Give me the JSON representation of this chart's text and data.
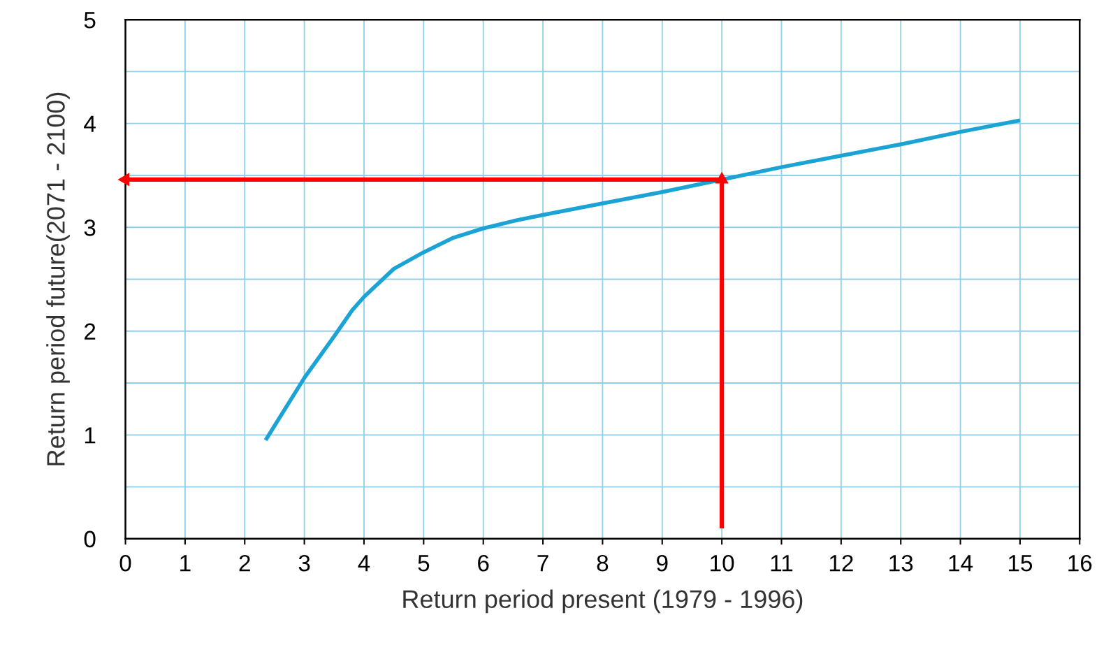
{
  "chart_data": {
    "type": "line",
    "xlabel": "Return period present (1979 - 1996)",
    "ylabel": "Return period future(2071 - 2100)",
    "xlim": [
      0,
      16
    ],
    "ylim": [
      0,
      5
    ],
    "xticks": [
      0,
      1,
      2,
      3,
      4,
      5,
      6,
      7,
      8,
      9,
      10,
      11,
      12,
      13,
      14,
      15,
      16
    ],
    "yticks": [
      0,
      {
        "value": 0.5,
        "label": null
      },
      1,
      {
        "value": 1.5,
        "label": null
      },
      2,
      {
        "value": 2.5,
        "label": null
      },
      3,
      {
        "value": 3.5,
        "label": null
      },
      4,
      {
        "value": 4.5,
        "label": null
      },
      5
    ],
    "grid": true,
    "series": [
      {
        "color": "#1aa3d4",
        "x": [
          2.35,
          3,
          3.5,
          3.8,
          4,
          4.5,
          5,
          5.5,
          6,
          6.5,
          7,
          8,
          9,
          10,
          11,
          12,
          13,
          14,
          15
        ],
        "values": [
          0.95,
          1.55,
          1.95,
          2.2,
          2.33,
          2.6,
          2.76,
          2.9,
          2.99,
          3.06,
          3.12,
          3.23,
          3.34,
          3.46,
          3.58,
          3.69,
          3.8,
          3.92,
          4.03
        ]
      },
      {
        "color": "#ff0000",
        "x": [
          10,
          10
        ],
        "values": [
          0.1,
          3.46
        ],
        "marker": "triangle"
      },
      {
        "color": "#ff0000",
        "x": [
          10,
          0
        ],
        "values": [
          3.46,
          3.46
        ],
        "marker": "triangle"
      }
    ]
  }
}
